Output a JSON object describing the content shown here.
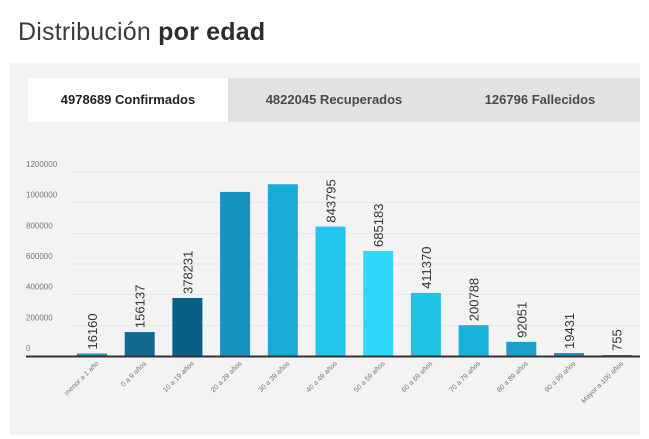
{
  "heading": {
    "normal": "Distribución ",
    "bold": "por edad"
  },
  "tabs": [
    {
      "label": "4978689 Confirmados",
      "active": true
    },
    {
      "label": "4822045 Recuperados",
      "active": false
    },
    {
      "label": "126796 Fallecidos",
      "active": false
    }
  ],
  "colors": {
    "axis": "#333333",
    "grid": "#e6e6e6",
    "tick_text": "#777777",
    "label_text": "#333333"
  },
  "chart_data": {
    "type": "bar",
    "title": "",
    "xlabel": "",
    "ylabel": "",
    "ylim": [
      0,
      1200000
    ],
    "yticks": [
      0,
      200000,
      400000,
      600000,
      800000,
      1000000,
      1200000
    ],
    "ytick_labels": [
      "0",
      "200000",
      "400000",
      "600000",
      "800000",
      "1000000",
      "1200000"
    ],
    "grid": true,
    "categories": [
      "menor a 1 año",
      "0 a 9 años",
      "10 a 19 años",
      "20 a 29 años",
      "30 a 39 años",
      "40 a 49 años",
      "50 a 59 años",
      "60 a 69 años",
      "70 a 79 años",
      "80 a 89 años",
      "90 a 99 años",
      "Mayor a 100 años"
    ],
    "values": [
      16160,
      156137,
      378231,
      1070000,
      1120000,
      843795,
      685183,
      411370,
      200788,
      92051,
      19431,
      755
    ],
    "data_labels": [
      "16160",
      "156137",
      "378231",
      "",
      "",
      "843795",
      "685183",
      "411370",
      "200788",
      "92051",
      "19431",
      "755"
    ],
    "bar_colors": [
      "#1f8fb8",
      "#12698f",
      "#0a5f84",
      "#1593bd",
      "#1aaad6",
      "#24c4ec",
      "#2fd8fb",
      "#21c2e6",
      "#1ab2dc",
      "#1aa0ca",
      "#1994c0",
      "#1790bb"
    ]
  }
}
